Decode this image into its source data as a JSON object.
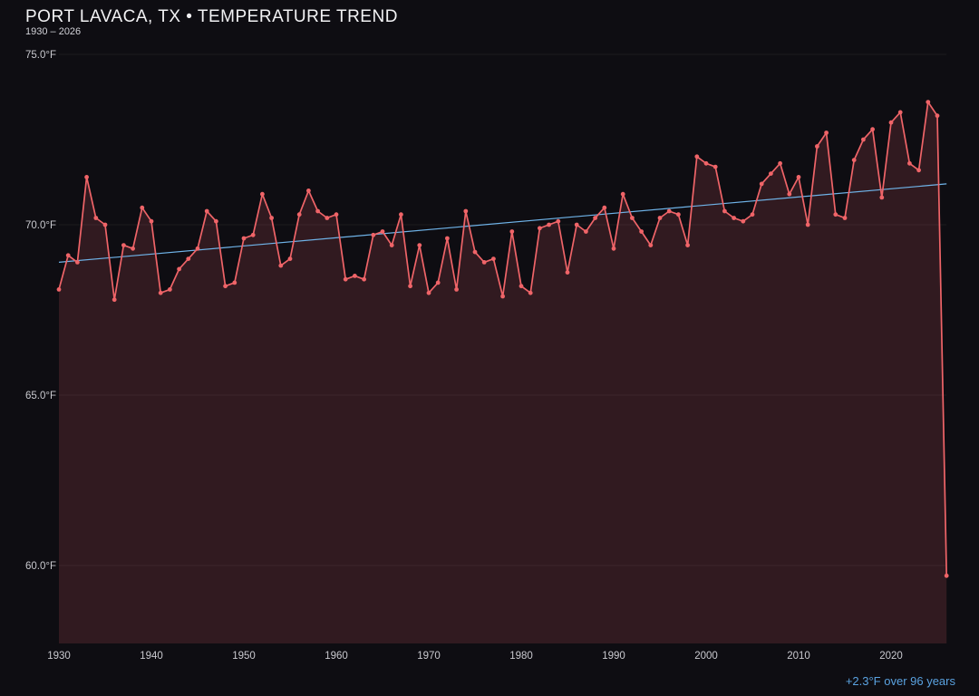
{
  "header": {
    "title": "PORT LAVACA, TX • TEMPERATURE TREND",
    "subtitle": "1930 – 2026"
  },
  "footer": {
    "trend_label": "+2.3°F over 96 years"
  },
  "colors": {
    "background": "#0e0d12",
    "series_line": "#ef6468",
    "series_fill": "rgba(239,100,104,0.16)",
    "trend_line": "#6fb3e8",
    "axis_text": "#c9c9cf",
    "gridline": "rgba(255,255,255,0.06)",
    "title_text": "#f2f2f4",
    "annotation_text": "#5aa2e0"
  },
  "chart_data": {
    "type": "line",
    "title": "PORT LAVACA, TX • TEMPERATURE TREND",
    "subtitle": "1930 – 2026",
    "xlabel": "",
    "ylabel": "",
    "x_start": 1930,
    "x_end": 2026,
    "ylim": [
      57.7,
      75.0
    ],
    "grid": "subtle-horizontal",
    "legend": "none",
    "units": "°F",
    "values": [
      68.1,
      69.1,
      68.9,
      71.4,
      70.2,
      70.0,
      67.8,
      69.4,
      69.3,
      70.5,
      70.1,
      68.0,
      68.1,
      68.7,
      69.0,
      69.3,
      70.4,
      70.1,
      68.2,
      68.3,
      69.6,
      69.7,
      70.9,
      70.2,
      68.8,
      69.0,
      70.3,
      71.0,
      70.4,
      70.2,
      70.3,
      68.4,
      68.5,
      68.4,
      69.7,
      69.8,
      69.4,
      70.3,
      68.2,
      69.4,
      68.0,
      68.3,
      69.6,
      68.1,
      70.4,
      69.2,
      68.9,
      69.0,
      67.9,
      69.8,
      68.2,
      68.0,
      69.9,
      70.0,
      70.1,
      68.6,
      70.0,
      69.8,
      70.2,
      70.5,
      69.3,
      70.9,
      70.2,
      69.8,
      69.4,
      70.2,
      70.4,
      70.3,
      69.4,
      72.0,
      71.8,
      71.7,
      70.4,
      70.2,
      70.1,
      70.3,
      71.2,
      71.5,
      71.8,
      70.9,
      71.4,
      70.0,
      72.3,
      72.7,
      70.3,
      70.2,
      71.9,
      72.5,
      72.8,
      70.8,
      73.0,
      73.3,
      71.8,
      71.6,
      73.6,
      73.2,
      59.7
    ],
    "trend": {
      "start_value": 68.9,
      "end_value": 71.2,
      "delta_label": "+2.3°F",
      "span_label": "over 96 years",
      "full_label": "+2.3°F over 96 years"
    },
    "y_ticks": [
      {
        "value": 75.0,
        "label": "75.0°F"
      },
      {
        "value": 70.0,
        "label": "70.0°F"
      },
      {
        "value": 65.0,
        "label": "65.0°F"
      },
      {
        "value": 60.0,
        "label": "60.0°F"
      }
    ],
    "x_ticks": [
      {
        "value": 1930,
        "label": "1930"
      },
      {
        "value": 1940,
        "label": "1940"
      },
      {
        "value": 1950,
        "label": "1950"
      },
      {
        "value": 1960,
        "label": "1960"
      },
      {
        "value": 1970,
        "label": "1970"
      },
      {
        "value": 1980,
        "label": "1980"
      },
      {
        "value": 1990,
        "label": "1990"
      },
      {
        "value": 2000,
        "label": "2000"
      },
      {
        "value": 2010,
        "label": "2010"
      },
      {
        "value": 2020,
        "label": "2020"
      }
    ]
  }
}
